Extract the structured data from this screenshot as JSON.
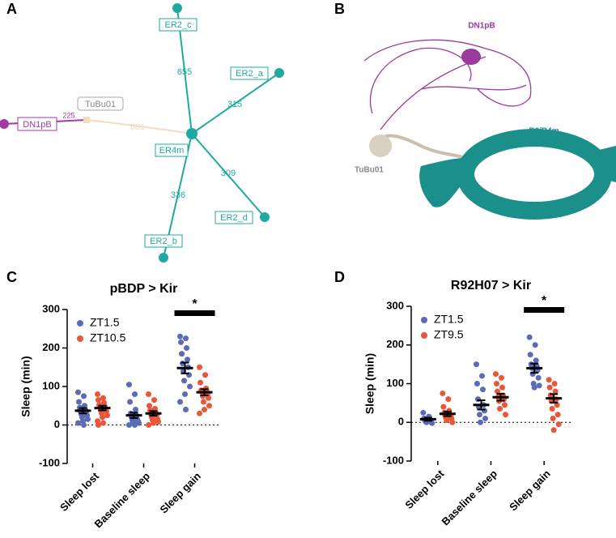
{
  "panels": [
    "A",
    "B",
    "C",
    "D"
  ],
  "diagram": {
    "nodes": [
      "ER2_c",
      "ER2_a",
      "ER4m",
      "ER2_d",
      "ER2_b",
      "TuBu01",
      "DN1pB"
    ],
    "edge_weights": [
      655,
      315,
      309,
      336,
      681,
      225
    ]
  },
  "rendering": {
    "labels": [
      "DN1pB",
      "R2/R4m",
      "TuBu01"
    ]
  },
  "chart_data": [
    {
      "type": "dotplot",
      "title": "pBDP > Kir",
      "y_label": "Sleep (min)",
      "categories": [
        "Sleep lost",
        "Baseline sleep",
        "Sleep gain"
      ],
      "ylim": [
        -100,
        300
      ],
      "yticks": [
        -100,
        0,
        100,
        200,
        300
      ],
      "annotation": "*",
      "series": [
        {
          "name": "ZT1.5",
          "color": "#5b6bb8",
          "values": [
            37,
            25,
            148
          ],
          "errors": [
            7,
            7,
            14
          ],
          "points": [
            [
              85,
              75,
              60,
              50,
              45,
              40,
              35,
              30,
              28,
              25,
              20,
              15,
              10,
              5,
              0
            ],
            [
              105,
              80,
              60,
              40,
              30,
              25,
              20,
              15,
              12,
              10,
              8,
              5,
              3,
              0,
              0
            ],
            [
              230,
              225,
              215,
              200,
              185,
              170,
              160,
              150,
              140,
              130,
              115,
              100,
              80,
              60,
              40
            ]
          ]
        },
        {
          "name": "ZT10.5",
          "color": "#e8573a",
          "values": [
            44,
            30,
            85
          ],
          "errors": [
            6,
            6,
            8
          ],
          "points": [
            [
              80,
              70,
              65,
              58,
              52,
              48,
              45,
              42,
              38,
              35,
              30,
              25,
              20,
              10,
              5,
              0
            ],
            [
              80,
              65,
              50,
              42,
              38,
              32,
              28,
              25,
              20,
              15,
              12,
              8,
              5,
              0
            ],
            [
              150,
              130,
              110,
              95,
              90,
              88,
              85,
              80,
              75,
              70,
              60,
              50,
              40,
              30
            ]
          ]
        }
      ]
    },
    {
      "type": "dotplot",
      "title": "R92H07 > Kir",
      "y_label": "Sleep (min)",
      "categories": [
        "Sleep lost",
        "Baseline sleep",
        "Sleep gain"
      ],
      "ylim": [
        -100,
        300
      ],
      "yticks": [
        -100,
        0,
        100,
        200,
        300
      ],
      "annotation": "*",
      "series": [
        {
          "name": "ZT1.5",
          "color": "#5b6bb8",
          "values": [
            8,
            45,
            140
          ],
          "errors": [
            4,
            12,
            12
          ],
          "points": [
            [
              25,
              15,
              10,
              8,
              5,
              3,
              2,
              0,
              0,
              -2
            ],
            [
              150,
              120,
              100,
              85,
              60,
              45,
              40,
              30,
              20,
              10,
              0
            ],
            [
              220,
              200,
              175,
              160,
              150,
              145,
              140,
              135,
              125,
              115,
              100,
              95,
              90
            ]
          ]
        },
        {
          "name": "ZT9.5",
          "color": "#e8573a",
          "values": [
            22,
            65,
            62
          ],
          "errors": [
            6,
            9,
            11
          ],
          "points": [
            [
              75,
              60,
              40,
              30,
              25,
              20,
              18,
              15,
              12,
              10,
              5,
              0
            ],
            [
              125,
              115,
              100,
              90,
              80,
              70,
              65,
              60,
              55,
              45,
              35,
              20
            ],
            [
              110,
              100,
              90,
              80,
              70,
              60,
              55,
              45,
              35,
              20,
              10,
              -5,
              -20
            ]
          ]
        }
      ]
    }
  ]
}
